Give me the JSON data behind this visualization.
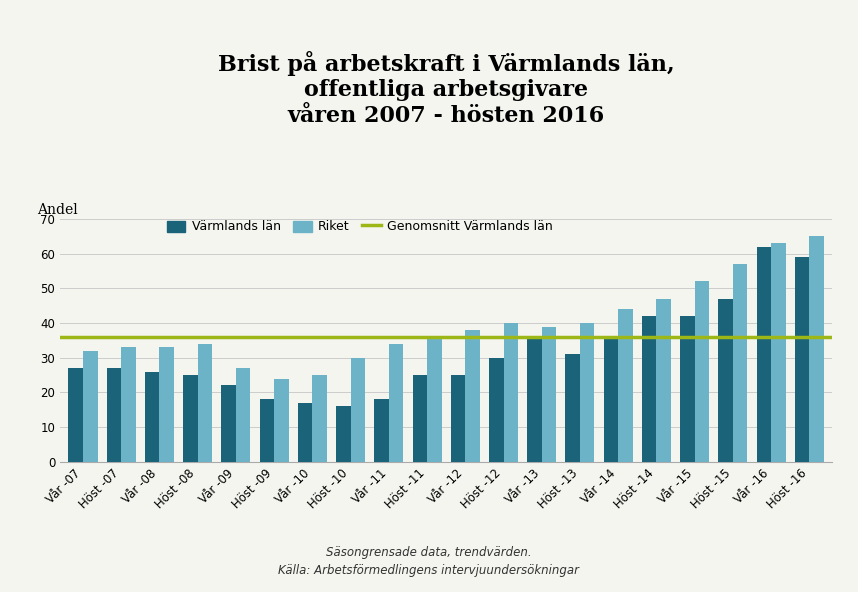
{
  "title_line1": "Brist på arbetskraft i Värmlands län,",
  "title_line2": "offentliga arbetsgivare",
  "title_line3": "våren 2007 - hösten 2016",
  "ylabel": "Andel",
  "categories": [
    "Vår -07",
    "Höst -07",
    "Vår -08",
    "Höst -08",
    "Vår -09",
    "Höst -09",
    "Vår -10",
    "Höst -10",
    "Vår -11",
    "Höst -11",
    "Vår -12",
    "Höst -12",
    "Vår -13",
    "Höst -13",
    "Vår -14",
    "Höst -14",
    "Vår -15",
    "Höst -15",
    "Vår -16",
    "Höst -16"
  ],
  "varmland": [
    27,
    27,
    26,
    25,
    22,
    18,
    17,
    16,
    18,
    25,
    25,
    30,
    36,
    31,
    36,
    42,
    42,
    47,
    62,
    59
  ],
  "riket": [
    32,
    33,
    33,
    34,
    27,
    24,
    25,
    30,
    34,
    36,
    38,
    40,
    39,
    40,
    44,
    47,
    52,
    57,
    63,
    65
  ],
  "average_line": 36,
  "bar_color_varmland": "#1b6378",
  "bar_color_riket": "#6db3c8",
  "line_color": "#9db816",
  "ylim": [
    0,
    70
  ],
  "yticks": [
    0,
    10,
    20,
    30,
    40,
    50,
    60,
    70
  ],
  "legend_varmland": "Värmlands län",
  "legend_riket": "Riket",
  "legend_avg": "Genomsnitt Värmlands län",
  "footnote1": "Säsongrensade data, trendvärden.",
  "footnote2": "Källa: Arbetsförmedlingens intervjuundersökningar",
  "background_color": "#f5f5f0",
  "title_fontsize": 16,
  "axis_fontsize": 10,
  "tick_fontsize": 8.5,
  "bar_width": 0.38
}
